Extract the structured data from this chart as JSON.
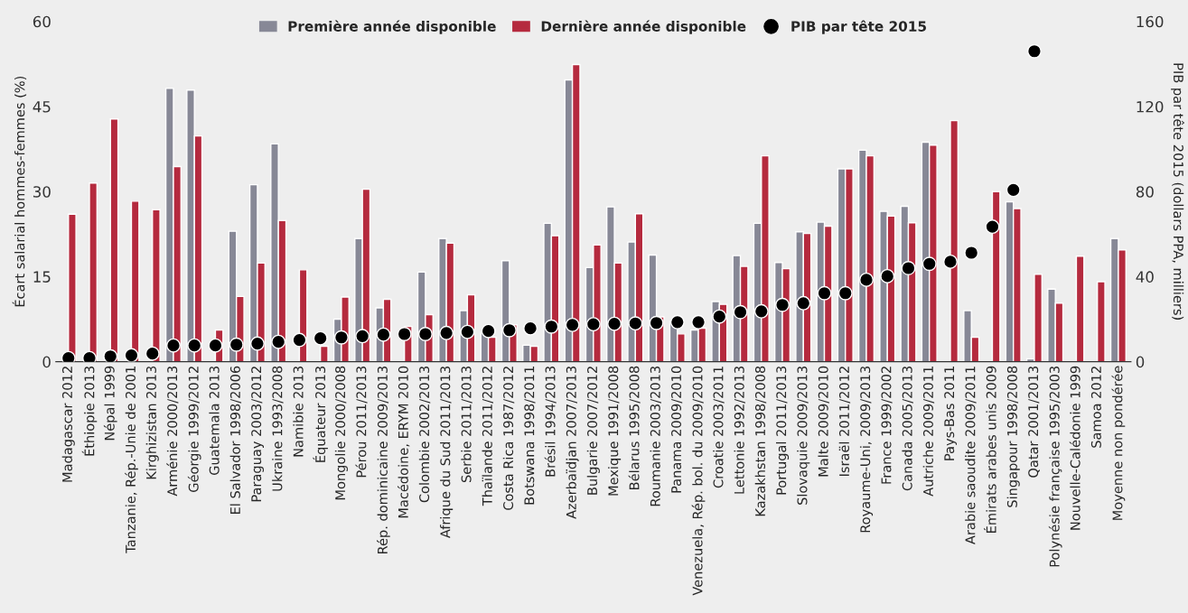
{
  "chart_data": {
    "type": "bar",
    "ylabel": "Écart salarial hommes-femmes (%)",
    "y2label": "PIB par tête 2015 (dollars PPA, milliers)",
    "categories": [
      "Madagascar 2012",
      "Éthiopie 2013",
      "Népal 1999",
      "Tanzanie, Rép.-Unie de 2001",
      "Kirghizistan 2013",
      "Arménie 2000/2013",
      "Géorgie 1999/2012",
      "Guatemala 2013",
      "El Salvador 1998/2006",
      "Paraguay 2003/2012",
      "Ukraine 1993/2008",
      "Namibie 2013",
      "Équateur 2013",
      "Mongolie 2000/2008",
      "Pérou 2011/2013",
      "Rép. dominicaine 2009/2013",
      "Macédoine, ERYM 2010",
      "Colombie 2002/2013",
      "Afrique du Sud 2011/2013",
      "Serbie 2011/2013",
      "Thaïlande 2011/2012",
      "Costa Rica 1987/2012",
      "Botswana 1998/2011",
      "Brésil 1994/2013",
      "Azerbaïdjan 2007/2013",
      "Bulgarie 2007/2012",
      "Mexique 1991/2008",
      "Bélarus 1995/2008",
      "Roumanie 2003/2013",
      "Panama 2009/2010",
      "Venezuela, Rép. bol. du 2009/2010",
      "Croatie 2003/2011",
      "Lettonie 1992/2013",
      "Kazakhstan 1998/2008",
      "Portugal 2011/2013",
      "Slovaquie 2009/2013",
      "Malte 2009/2010",
      "Israël 2011/2012",
      "Royaume-Uni, 2009/2013",
      "France 1999/2002",
      "Canada 2005/2013",
      "Autriche 2009/2011",
      "Pays-Bas 2011",
      "Arabie saoudite 2009/2011",
      "Émirats arabes unis 2009",
      "Singapour 1998/2008",
      "Qatar 2001/2013",
      "Polynésie française 1995/2003",
      "Nouvelle-Calédonie 1999",
      "Samoa 2012",
      "Moyenne non pondérée"
    ],
    "series": [
      {
        "name": "Première année disponible",
        "color": "#878896",
        "values": [
          null,
          null,
          null,
          null,
          null,
          48.2,
          47.9,
          null,
          23,
          31.2,
          38.4,
          null,
          null,
          7.5,
          21.7,
          9.5,
          null,
          15.8,
          21.7,
          9,
          5.3,
          17.8,
          2.9,
          24.4,
          49.7,
          16.6,
          27.3,
          21.1,
          18.8,
          7.1,
          5.6,
          10.6,
          18.7,
          24.4,
          17.5,
          22.9,
          24.6,
          34,
          37.3,
          26.5,
          27.4,
          38.7,
          null,
          9,
          null,
          28.2,
          0.5,
          12.8,
          null,
          null,
          21.7
        ]
      },
      {
        "name": "Dernière année disponible",
        "color": "#b52a3e",
        "values": [
          26,
          31.5,
          42.8,
          28.3,
          26.8,
          34.4,
          39.8,
          5.6,
          11.5,
          17.4,
          24.9,
          16.2,
          2.7,
          11.4,
          30.4,
          11,
          6.2,
          8.3,
          20.9,
          11.8,
          4.3,
          6.5,
          2.7,
          22.2,
          52.4,
          20.6,
          17.4,
          26.1,
          7.9,
          4.9,
          5.9,
          10.1,
          16.8,
          36.3,
          16.4,
          22.6,
          23.9,
          34,
          36.3,
          25.7,
          24.5,
          38.2,
          42.5,
          4.3,
          30,
          27,
          15.4,
          10.3,
          18.6,
          14.1,
          19.7
        ]
      },
      {
        "name": "PIB par tête 2015",
        "type": "scatter",
        "axis": "y2",
        "color": "#000000",
        "marker": "circle",
        "values": [
          1.7,
          1.7,
          2.5,
          3,
          3.8,
          7.6,
          7.6,
          7.6,
          8,
          8.5,
          9.3,
          10.2,
          11,
          11.4,
          12,
          12.7,
          13,
          13,
          13.5,
          14,
          14.4,
          14.8,
          15.7,
          16.5,
          17.3,
          17.6,
          17.8,
          18,
          18.2,
          18.6,
          18.6,
          21.2,
          23.3,
          23.7,
          26.7,
          27.5,
          32.2,
          32.2,
          38.5,
          40.2,
          44,
          46,
          47,
          51.2,
          63.5,
          80.8,
          146,
          null,
          null,
          null,
          null
        ]
      }
    ],
    "ylim": [
      0,
      60
    ],
    "yticks": [
      0,
      15,
      30,
      45,
      60
    ],
    "y2lim": [
      0,
      160
    ],
    "y2ticks": [
      0,
      40,
      80,
      120,
      160
    ],
    "grid": false,
    "legend": "top"
  }
}
